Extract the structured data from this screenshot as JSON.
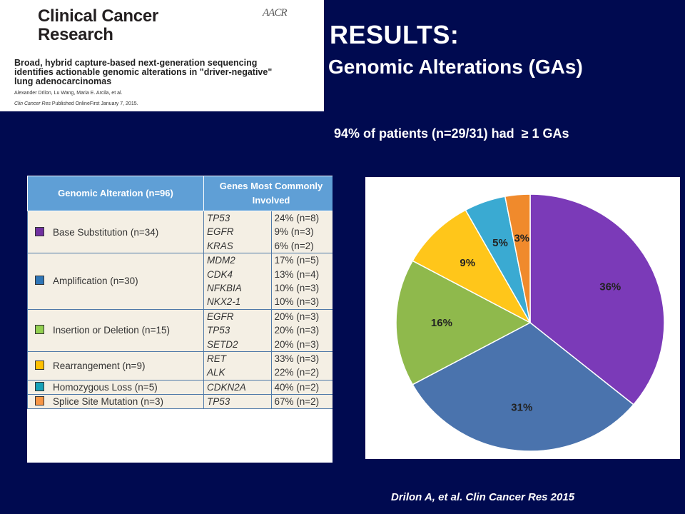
{
  "paper": {
    "journal_line1": "Clinical Cancer",
    "journal_line2": "Research",
    "logo_text": "AACR",
    "title_line1": "Broad, hybrid capture-based next-generation sequencing",
    "title_line2": "identifies actionable genomic alterations in \"driver-negative\"",
    "title_line3": "lung adenocarcinomas",
    "authors": "Alexander Drilon, Lu Wang, Maria E. Arcila, et al.",
    "journal_abbrev": "Clin Cancer Res",
    "published": "Published OnlineFirst January 7, 2015."
  },
  "slide": {
    "heading": "RESULTS:",
    "subheading": "Genomic Alterations (GAs)",
    "stat": "94% of patients (n=29/31) had  ≥ 1 GAs",
    "citation": "Drilon A, et al. Clin Cancer Res 2015"
  },
  "table": {
    "header_col1": "Genomic Alteration (n=96)",
    "header_col2": "Genes Most Commonly Involved",
    "rows": [
      {
        "label": "Base Substitution (n=34)",
        "color": "#7030a0",
        "genes": [
          "TP53",
          "EGFR",
          "KRAS"
        ],
        "pcts": [
          "24% (n=8)",
          "9% (n=3)",
          "6% (n=2)"
        ]
      },
      {
        "label": "Amplification (n=30)",
        "color": "#2e75b6",
        "genes": [
          "MDM2",
          "CDK4",
          "NFKBIA",
          "NKX2-1"
        ],
        "pcts": [
          "17% (n=5)",
          "13% (n=4)",
          "10% (n=3)",
          "10% (n=3)"
        ]
      },
      {
        "label": "Insertion or Deletion (n=15)",
        "color": "#92d050",
        "genes": [
          "EGFR",
          "TP53",
          "SETD2"
        ],
        "pcts": [
          "20% (n=3)",
          "20% (n=3)",
          "20% (n=3)"
        ]
      },
      {
        "label": "Rearrangement (n=9)",
        "color": "#ffc000",
        "genes": [
          "RET",
          "ALK"
        ],
        "pcts": [
          "33% (n=3)",
          "22% (n=2)"
        ]
      },
      {
        "label": "Homozygous Loss (n=5)",
        "color": "#17a2b8",
        "genes": [
          "CDKN2A"
        ],
        "pcts": [
          "40% (n=2)"
        ]
      },
      {
        "label": "Splice Site Mutation (n=3)",
        "color": "#f79646",
        "genes": [
          "TP53"
        ],
        "pcts": [
          "67% (n=2)"
        ]
      }
    ]
  },
  "chart_data": {
    "type": "pie",
    "title": "",
    "slices": [
      {
        "label": "36%",
        "value": 36,
        "color": "#7b3ab8"
      },
      {
        "label": "31%",
        "value": 31,
        "color": "#4a73ad"
      },
      {
        "label": "16%",
        "value": 16,
        "color": "#8fb94c"
      },
      {
        "label": "9%",
        "value": 9,
        "color": "#ffc61a"
      },
      {
        "label": "5%",
        "value": 5,
        "color": "#3aaad2"
      },
      {
        "label": "3%",
        "value": 3,
        "color": "#f08a2c"
      }
    ]
  }
}
